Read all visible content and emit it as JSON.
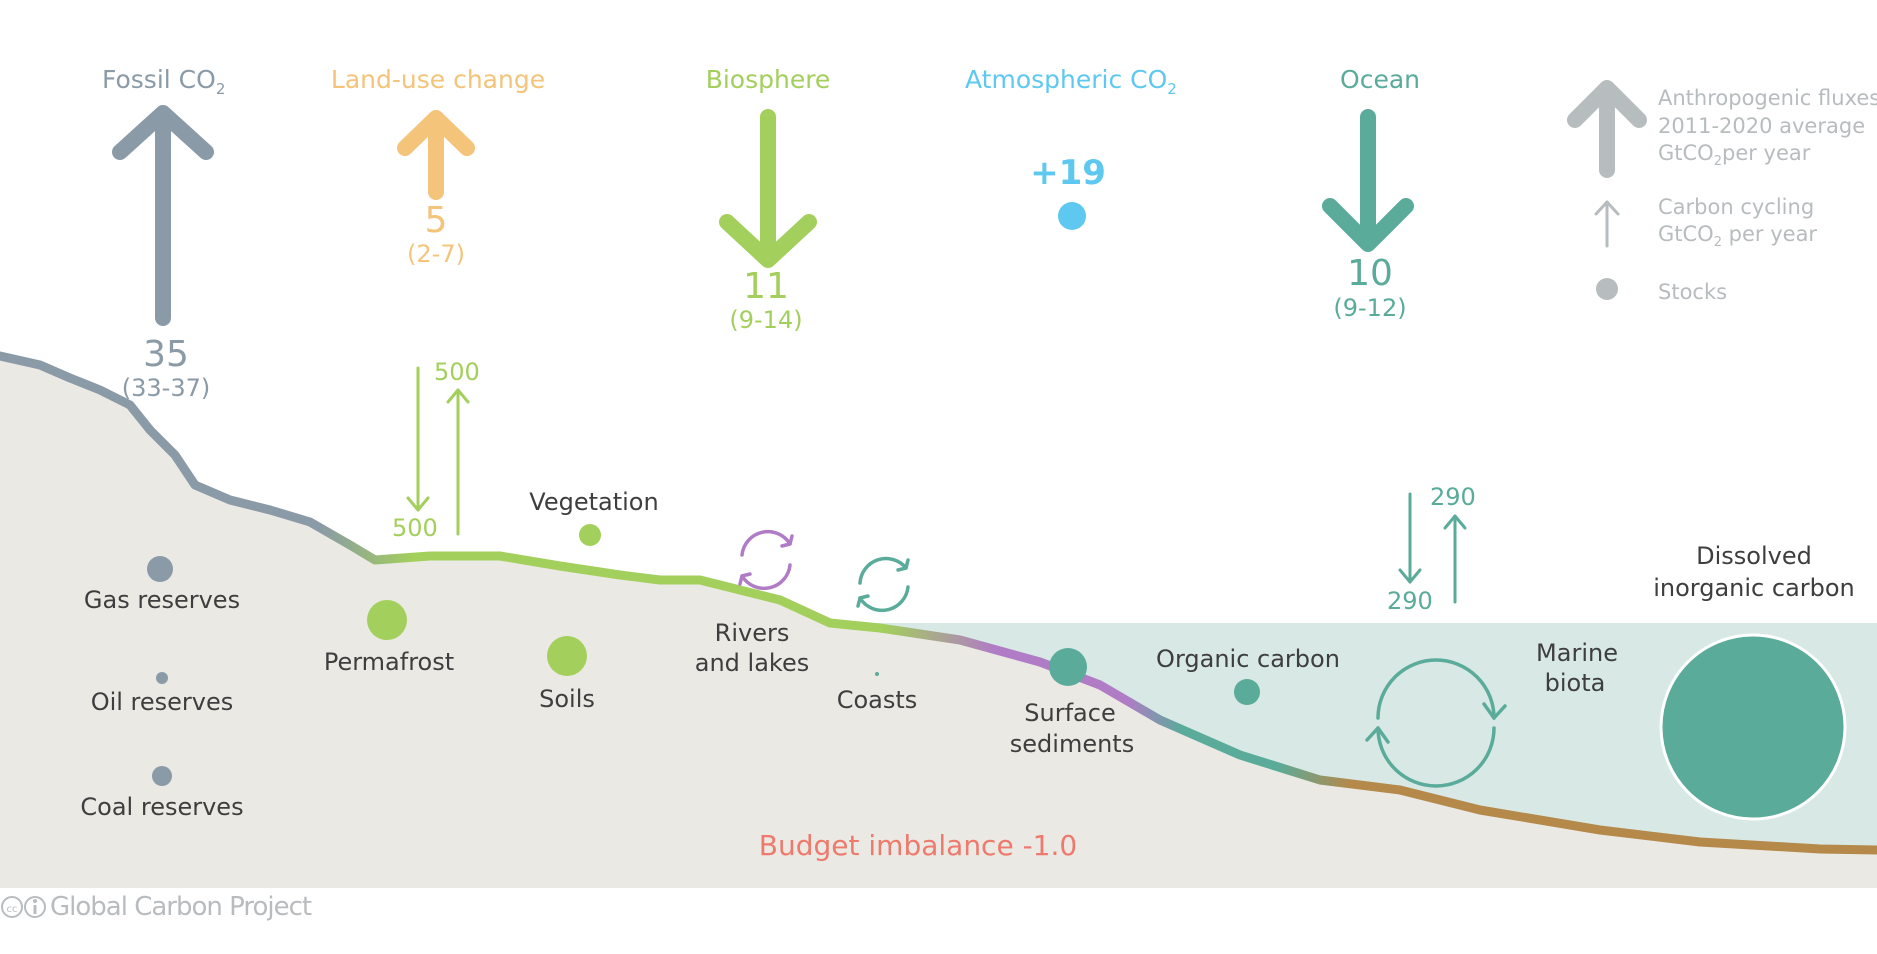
{
  "fluxes": {
    "fossil": {
      "title": "Fossil CO",
      "title_sub": "2",
      "value": "35",
      "range": "(33-37)"
    },
    "land_use": {
      "title": "Land-use change",
      "value": "5",
      "range": "(2-7)"
    },
    "biosphere": {
      "title": "Biosphere",
      "value": "11",
      "range": "(9-14)"
    },
    "atmosphere": {
      "title": "Atmospheric CO",
      "title_sub": "2",
      "value": "+19"
    },
    "ocean": {
      "title": "Ocean",
      "value": "10",
      "range": "(9-12)"
    }
  },
  "legend": {
    "anthropogenic_1": "Anthropogenic fluxes",
    "anthropogenic_2": "2011-2020  average",
    "anthropogenic_3a": "GtCO",
    "anthropogenic_3_sub": "2",
    "anthropogenic_3b": "per year",
    "cycling_1": "Carbon cycling",
    "cycling_2a": "GtCO",
    "cycling_2_sub": "2",
    "cycling_2b": " per year",
    "stocks": "Stocks"
  },
  "cycling": {
    "land_up": "500",
    "land_down": "500",
    "ocean_up": "290",
    "ocean_down": "290"
  },
  "stocks": {
    "gas": "Gas reserves",
    "oil": "Oil reserves",
    "coal": "Coal reserves",
    "permafrost": "Permafrost",
    "vegetation": "Vegetation",
    "soils": "Soils",
    "rivers_1": "Rivers",
    "rivers_2": "and lakes",
    "coasts": "Coasts",
    "sediments_1": "Surface",
    "sediments_2": "sediments",
    "organic": "Organic carbon",
    "biota_1": "Marine",
    "biota_2": "biota",
    "dic_1": "Dissolved",
    "dic_2": "inorganic carbon"
  },
  "budget_imbalance": "Budget imbalance -1.0",
  "credit": "Global Carbon Project",
  "credit_license": "cc",
  "colors": {
    "fossil": "#8a9aa7",
    "land_use": "#f3c47a",
    "biosphere": "#a3cf5c",
    "atmosphere": "#5ec8f0",
    "ocean": "#5aab9a",
    "legend": "#b7bcbf",
    "rivers": "#b07cc6",
    "imbalance": "#ee7a6e",
    "sediment": "#b5894a",
    "land": "#ebe9e3",
    "ocean_water": "#d7e8e5"
  }
}
